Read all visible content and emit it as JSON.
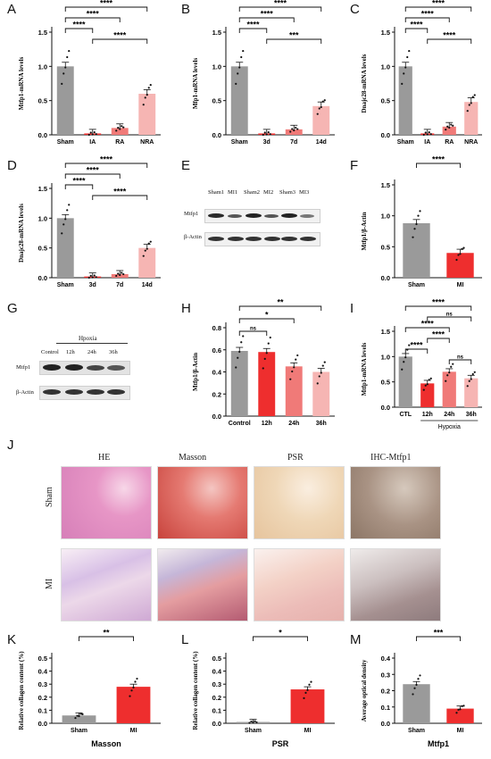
{
  "panel_labels": {
    "A": "A",
    "B": "B",
    "C": "C",
    "D": "D",
    "E": "E",
    "F": "F",
    "G": "G",
    "H": "H",
    "I": "I",
    "J": "J",
    "K": "K",
    "L": "L",
    "M": "M"
  },
  "colors": {
    "gray": "#9a9a9a",
    "red": "#ee2e2e",
    "salmon": "#f07a78",
    "pink": "#f6b5b3",
    "dark": "#111111"
  },
  "blots": {
    "E": {
      "lanes": [
        "Sham1",
        "MI1",
        "Sham2",
        "MI2",
        "Sham3",
        "MI3"
      ],
      "rows": [
        "Mtfp1",
        "β-Actin"
      ]
    },
    "G": {
      "header": "Hpoxia",
      "lanes": [
        "Control",
        "12h",
        "24h",
        "36h"
      ],
      "rows": [
        "Mtfp1",
        "β-Actin"
      ]
    }
  },
  "histology": {
    "columns": [
      "HE",
      "Masson",
      "PSR",
      "IHC-Mtfp1"
    ],
    "rows": [
      "Sham",
      "MI"
    ]
  },
  "chart_data": [
    {
      "panel": "A",
      "type": "bar",
      "categories": [
        "Sham",
        "IA",
        "RA",
        "NRA"
      ],
      "values": [
        1.0,
        0.02,
        0.1,
        0.6
      ],
      "ylabel": "Mtfp1-mRNA levels",
      "ylim": [
        0,
        1.5
      ],
      "yticks": [
        0.0,
        0.5,
        1.0,
        1.5
      ],
      "colors": [
        "#9a9a9a",
        "#ee2e2e",
        "#f07a78",
        "#f6b5b3"
      ],
      "brackets": [
        {
          "from": 0,
          "to": 3,
          "label": "****"
        },
        {
          "from": 0,
          "to": 2,
          "label": "****"
        },
        {
          "from": 0,
          "to": 1,
          "label": "****"
        },
        {
          "from": 1,
          "to": 3,
          "label": "****"
        }
      ]
    },
    {
      "panel": "B",
      "type": "bar",
      "categories": [
        "Sham",
        "3d",
        "7d",
        "14d"
      ],
      "values": [
        1.0,
        0.02,
        0.08,
        0.42
      ],
      "ylabel": "Mfp1-mRNA levels",
      "ylim": [
        0,
        1.5
      ],
      "yticks": [
        0.0,
        0.5,
        1.0,
        1.5
      ],
      "colors": [
        "#9a9a9a",
        "#ee2e2e",
        "#f07a78",
        "#f6b5b3"
      ],
      "brackets": [
        {
          "from": 0,
          "to": 3,
          "label": "****"
        },
        {
          "from": 0,
          "to": 2,
          "label": "****"
        },
        {
          "from": 0,
          "to": 1,
          "label": "****"
        },
        {
          "from": 1,
          "to": 3,
          "label": "***"
        }
      ]
    },
    {
      "panel": "C",
      "type": "bar",
      "categories": [
        "Sham",
        "IA",
        "RA",
        "NRA"
      ],
      "values": [
        1.0,
        0.02,
        0.12,
        0.48
      ],
      "ylabel": "Dnajc28-mRNA levels",
      "ylim": [
        0,
        1.5
      ],
      "yticks": [
        0.0,
        0.5,
        1.0,
        1.5
      ],
      "colors": [
        "#9a9a9a",
        "#ee2e2e",
        "#f07a78",
        "#f6b5b3"
      ],
      "brackets": [
        {
          "from": 0,
          "to": 3,
          "label": "****"
        },
        {
          "from": 0,
          "to": 2,
          "label": "****"
        },
        {
          "from": 0,
          "to": 1,
          "label": "****"
        },
        {
          "from": 1,
          "to": 3,
          "label": "****"
        }
      ]
    },
    {
      "panel": "D",
      "type": "bar",
      "categories": [
        "Sham",
        "3d",
        "7d",
        "14d"
      ],
      "values": [
        1.0,
        0.02,
        0.06,
        0.5
      ],
      "ylabel": "Dnajc28-mRNA levels",
      "ylim": [
        0,
        1.5
      ],
      "yticks": [
        0.0,
        0.5,
        1.0,
        1.5
      ],
      "colors": [
        "#9a9a9a",
        "#ee2e2e",
        "#f07a78",
        "#f6b5b3"
      ],
      "brackets": [
        {
          "from": 0,
          "to": 3,
          "label": "****"
        },
        {
          "from": 0,
          "to": 2,
          "label": "****"
        },
        {
          "from": 0,
          "to": 1,
          "label": "****"
        },
        {
          "from": 1,
          "to": 3,
          "label": "****"
        }
      ]
    },
    {
      "panel": "F",
      "type": "bar",
      "categories": [
        "Sham",
        "MI"
      ],
      "values": [
        0.88,
        0.4
      ],
      "ylabel": "Mtfp1/β-Actin",
      "ylim": [
        0,
        1.5
      ],
      "yticks": [
        0.0,
        0.5,
        1.0,
        1.5
      ],
      "colors": [
        "#9a9a9a",
        "#ee2e2e"
      ],
      "brackets": [
        {
          "from": 0,
          "to": 1,
          "label": "****"
        }
      ]
    },
    {
      "panel": "H",
      "type": "bar",
      "categories": [
        "Control",
        "12h",
        "24h",
        "36h"
      ],
      "values": [
        0.59,
        0.58,
        0.45,
        0.4
      ],
      "ylabel": "Mtfp1/β-Actin",
      "ylim": [
        0,
        0.8
      ],
      "yticks": [
        0.0,
        0.2,
        0.4,
        0.6,
        0.8
      ],
      "colors": [
        "#9a9a9a",
        "#ee2e2e",
        "#f07a78",
        "#f6b5b3"
      ],
      "brackets": [
        {
          "from": 0,
          "to": 3,
          "label": "**"
        },
        {
          "from": 0,
          "to": 2,
          "label": "*"
        },
        {
          "from": 0,
          "to": 1,
          "label": "ns"
        }
      ]
    },
    {
      "panel": "I",
      "type": "bar",
      "categories": [
        "CTL",
        "12h",
        "24h",
        "36h"
      ],
      "values": [
        1.0,
        0.47,
        0.7,
        0.57
      ],
      "ylabel": "Mtfp1-mRNA levels",
      "ylim": [
        0,
        1.5
      ],
      "yticks": [
        0.0,
        0.5,
        1.0,
        1.5
      ],
      "group_label": "Hypoxia",
      "colors": [
        "#9a9a9a",
        "#ee2e2e",
        "#f07a78",
        "#f6b5b3"
      ],
      "brackets": [
        {
          "from": 0,
          "to": 3,
          "label": "****"
        },
        {
          "from": 1,
          "to": 3,
          "label": "ns"
        },
        {
          "from": 0,
          "to": 2,
          "label": "****"
        },
        {
          "from": 1,
          "to": 2,
          "label": "****"
        },
        {
          "from": 0,
          "to": 1,
          "label": "****"
        },
        {
          "from": 2,
          "to": 3,
          "label": "ns"
        }
      ]
    },
    {
      "panel": "K",
      "type": "bar",
      "categories": [
        "Sham",
        "MI"
      ],
      "values": [
        0.06,
        0.28
      ],
      "ylabel": "Relative collagen content (%)",
      "xlabel": "Masson",
      "ylim": [
        0,
        0.5
      ],
      "yticks": [
        0.0,
        0.1,
        0.2,
        0.3,
        0.4,
        0.5
      ],
      "colors": [
        "#9a9a9a",
        "#ee2e2e"
      ],
      "brackets": [
        {
          "from": 0,
          "to": 1,
          "label": "**"
        }
      ]
    },
    {
      "panel": "L",
      "type": "bar",
      "categories": [
        "Sham",
        "MI"
      ],
      "values": [
        0.01,
        0.26
      ],
      "ylabel": "Relative collagen content (%)",
      "xlabel": "PSR",
      "ylim": [
        0,
        0.5
      ],
      "yticks": [
        0.0,
        0.1,
        0.2,
        0.3,
        0.4,
        0.5
      ],
      "colors": [
        "#9a9a9a",
        "#ee2e2e"
      ],
      "brackets": [
        {
          "from": 0,
          "to": 1,
          "label": "*"
        }
      ]
    },
    {
      "panel": "M",
      "type": "bar",
      "categories": [
        "Sham",
        "MI"
      ],
      "values": [
        0.24,
        0.09
      ],
      "ylabel": "Average optical density",
      "xlabel": "Mtfp1",
      "ylim": [
        0,
        0.4
      ],
      "yticks": [
        0.0,
        0.1,
        0.2,
        0.3,
        0.4
      ],
      "colors": [
        "#9a9a9a",
        "#ee2e2e"
      ],
      "brackets": [
        {
          "from": 0,
          "to": 1,
          "label": "***"
        }
      ]
    }
  ]
}
